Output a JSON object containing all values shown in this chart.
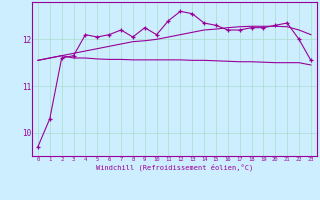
{
  "xlabel": "Windchill (Refroidissement éolien,°C)",
  "background_color": "#cceeff",
  "grid_color": "#aaddcc",
  "line_color": "#990099",
  "x_values": [
    0,
    1,
    2,
    3,
    4,
    5,
    6,
    7,
    8,
    9,
    10,
    11,
    12,
    13,
    14,
    15,
    16,
    17,
    18,
    19,
    20,
    21,
    22,
    23
  ],
  "line1": [
    9.7,
    10.3,
    11.6,
    11.65,
    12.1,
    12.05,
    12.1,
    12.2,
    12.05,
    12.25,
    12.1,
    12.4,
    12.6,
    12.55,
    12.35,
    12.3,
    12.2,
    12.2,
    12.25,
    12.25,
    12.3,
    12.35,
    12.0,
    11.55
  ],
  "line2": [
    11.55,
    11.6,
    11.65,
    11.6,
    11.6,
    11.58,
    11.57,
    11.57,
    11.56,
    11.56,
    11.56,
    11.56,
    11.56,
    11.55,
    11.55,
    11.54,
    11.53,
    11.52,
    11.52,
    11.51,
    11.5,
    11.5,
    11.5,
    11.45
  ],
  "line3": [
    11.55,
    11.6,
    11.65,
    11.7,
    11.75,
    11.8,
    11.85,
    11.9,
    11.95,
    11.97,
    12.0,
    12.05,
    12.1,
    12.15,
    12.2,
    12.22,
    12.25,
    12.27,
    12.28,
    12.28,
    12.28,
    12.27,
    12.2,
    12.1
  ],
  "ylim": [
    9.5,
    12.8
  ],
  "yticks": [
    10,
    11,
    12
  ],
  "xlim": [
    -0.5,
    23.5
  ],
  "figsize": [
    3.2,
    2.0
  ],
  "dpi": 100
}
